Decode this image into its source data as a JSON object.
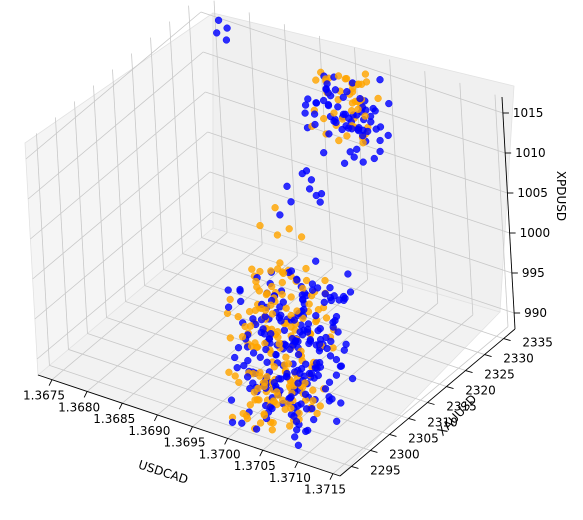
{
  "chart_data": {
    "type": "scatter",
    "projection": "3d",
    "title": "",
    "xlabel": "USDCAD",
    "ylabel": "XAUUSD",
    "zlabel": "XPDUSD",
    "xlim": [
      1.3673,
      1.3716
    ],
    "ylim": [
      2292,
      2338
    ],
    "zlim": [
      988,
      1017
    ],
    "x_ticks": [
      "1.3675",
      "1.3680",
      "1.3685",
      "1.3690",
      "1.3695",
      "1.3700",
      "1.3705",
      "1.3710",
      "1.3715"
    ],
    "y_ticks": [
      "2295",
      "2300",
      "2305",
      "2310",
      "2315",
      "2320",
      "2325",
      "2330",
      "2335"
    ],
    "z_ticks": [
      "990",
      "995",
      "1000",
      "1005",
      "1010",
      "1015"
    ],
    "grid": true,
    "legend": "none",
    "colors": {
      "series_a": "#0000ff",
      "series_b": "#ffa500"
    },
    "series": [
      {
        "color": "#0000ff",
        "clusters": [
          {
            "x": [
              1.3676,
              1.3678
            ],
            "y": [
              2333,
              2337
            ],
            "z": [
              1012,
              1017
            ],
            "n": 4
          },
          {
            "x": [
              1.3693,
              1.3702
            ],
            "y": [
              2325,
              2337
            ],
            "z": [
              1008,
              1016
            ],
            "n": 70
          },
          {
            "x": [
              1.3693,
              1.3697
            ],
            "y": [
              2318,
              2326
            ],
            "z": [
              1002,
              1008
            ],
            "n": 10
          },
          {
            "x": [
              1.3694,
              1.3705
            ],
            "y": [
              2303,
              2318
            ],
            "z": [
              989,
              1000
            ],
            "n": 140
          },
          {
            "x": [
              1.3699,
              1.371
            ],
            "y": [
              2295,
              2308
            ],
            "z": [
              988,
              995
            ],
            "n": 90
          }
        ]
      },
      {
        "color": "#ffa500",
        "clusters": [
          {
            "x": [
              1.3693,
              1.37
            ],
            "y": [
              2328,
              2337
            ],
            "z": [
              1009,
              1017
            ],
            "n": 45
          },
          {
            "x": [
              1.3693,
              1.3697
            ],
            "y": [
              2310,
              2320
            ],
            "z": [
              998,
              1006
            ],
            "n": 6
          },
          {
            "x": [
              1.3693,
              1.3703
            ],
            "y": [
              2303,
              2318
            ],
            "z": [
              989,
              1000
            ],
            "n": 110
          },
          {
            "x": [
              1.3699,
              1.3707
            ],
            "y": [
              2295,
              2306
            ],
            "z": [
              988,
              994
            ],
            "n": 70
          }
        ]
      }
    ]
  }
}
